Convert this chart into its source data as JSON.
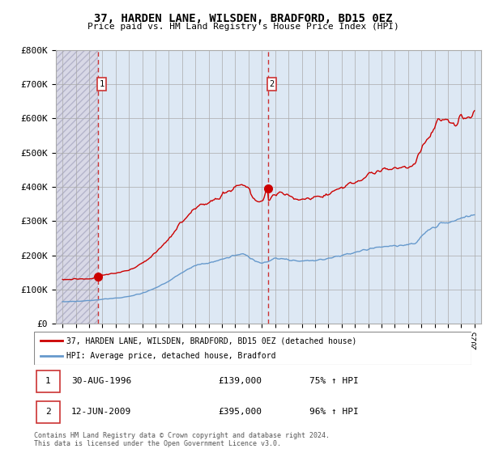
{
  "title": "37, HARDEN LANE, WILSDEN, BRADFORD, BD15 0EZ",
  "subtitle": "Price paid vs. HM Land Registry's House Price Index (HPI)",
  "legend_line1": "37, HARDEN LANE, WILSDEN, BRADFORD, BD15 0EZ (detached house)",
  "legend_line2": "HPI: Average price, detached house, Bradford",
  "footer": "Contains HM Land Registry data © Crown copyright and database right 2024.\nThis data is licensed under the Open Government Licence v3.0.",
  "transaction1_date": "30-AUG-1996",
  "transaction1_price": "£139,000",
  "transaction1_hpi": "75% ↑ HPI",
  "transaction1_year": 1996.66,
  "transaction1_value": 139000,
  "transaction2_date": "12-JUN-2009",
  "transaction2_price": "£395,000",
  "transaction2_hpi": "96% ↑ HPI",
  "transaction2_year": 2009.44,
  "transaction2_value": 395000,
  "line_color_red": "#cc0000",
  "line_color_blue": "#6699cc",
  "marker_color": "#cc0000",
  "dashed_line_color": "#cc3333",
  "hatch_bg_color": "#dde8f0",
  "hatch_left_color": "#d8d8e8",
  "ylim_max": 800000,
  "yticks": [
    0,
    100000,
    200000,
    300000,
    400000,
    500000,
    600000,
    700000,
    800000
  ],
  "xmin": 1993.5,
  "xmax": 2025.5
}
